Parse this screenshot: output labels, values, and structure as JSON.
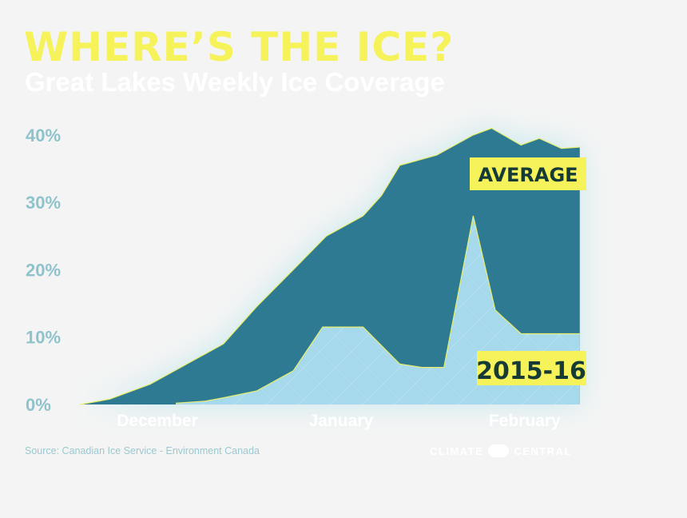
{
  "header": {
    "title": "WHERE’S THE ICE?",
    "subtitle": "Great Lakes Weekly Ice Coverage"
  },
  "footer": {
    "source": "Source: Canadian Ice Service - Environment Canada",
    "brand_left": "CLIMATE",
    "brand_right": "CENTRAL"
  },
  "colors": {
    "average_fill": "#2f7a93",
    "current_fill": "#a6d9ec",
    "outline": "#e9ef6a",
    "label_bg": "#f5f25a",
    "label_text": "#163a36",
    "axis_text": "#8fc3cc",
    "month_text": "#ffffff"
  },
  "chart_data": {
    "type": "area",
    "title": "Great Lakes Weekly Ice Coverage",
    "y_tick_labels": [
      "0%",
      "10%",
      "20%",
      "30%",
      "40%"
    ],
    "y_ticks": [
      0,
      10,
      20,
      30,
      40
    ],
    "ylim": [
      0,
      42
    ],
    "x_labels": [
      "December",
      "January",
      "February"
    ],
    "x_label_weeks": [
      2.5,
      7.5,
      12.5
    ],
    "xlim": [
      0,
      14.2
    ],
    "grid": false,
    "series": [
      {
        "name": "AVERAGE",
        "x": [
          0.4,
          1.2,
          2.3,
          3.3,
          4.3,
          5.2,
          6.2,
          7.1,
          8.1,
          8.6,
          9.1,
          10.1,
          11.1,
          11.6,
          12.4,
          12.9,
          13.5,
          14.0
        ],
        "values": [
          0,
          0.8,
          3,
          6,
          9,
          14.5,
          20,
          25,
          28,
          31,
          35.5,
          37,
          40,
          41,
          38.5,
          39.5,
          38,
          38.2
        ]
      },
      {
        "name": "2015-16",
        "x": [
          3.0,
          3.8,
          4.3,
          5.2,
          6.2,
          7.0,
          8.1,
          9.1,
          9.7,
          10.3,
          11.1,
          11.7,
          12.4,
          13.1,
          14.0
        ],
        "values": [
          0.2,
          0.5,
          1,
          2,
          5,
          11.5,
          11.5,
          6,
          5.5,
          5.5,
          28,
          14,
          10.5,
          10.5,
          10.5
        ]
      }
    ]
  }
}
